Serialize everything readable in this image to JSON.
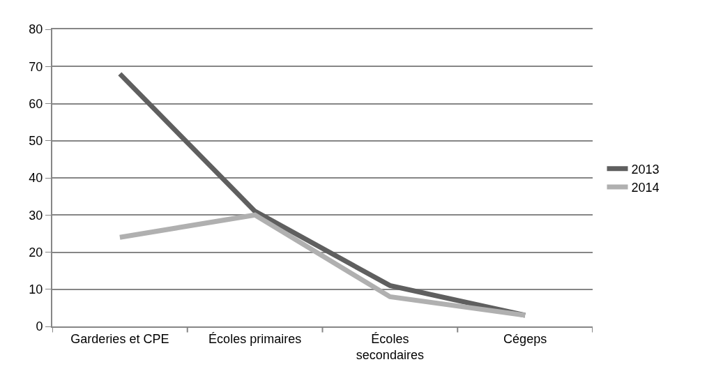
{
  "chart_data": {
    "type": "line",
    "categories": [
      "Garderies et CPE",
      "Écoles primaires",
      "Écoles secondaires",
      "Cégeps"
    ],
    "series": [
      {
        "name": "2013",
        "color": "#5f5f5f",
        "values": [
          68,
          31,
          11,
          3
        ]
      },
      {
        "name": "2014",
        "color": "#b0b0b0",
        "values": [
          24,
          30,
          8,
          3
        ]
      }
    ],
    "ylim": [
      0,
      80
    ],
    "yticks": [
      0,
      10,
      20,
      30,
      40,
      50,
      60,
      70,
      80
    ],
    "grid": "y",
    "legend": "right",
    "marker": "none",
    "line_style": "solid"
  }
}
